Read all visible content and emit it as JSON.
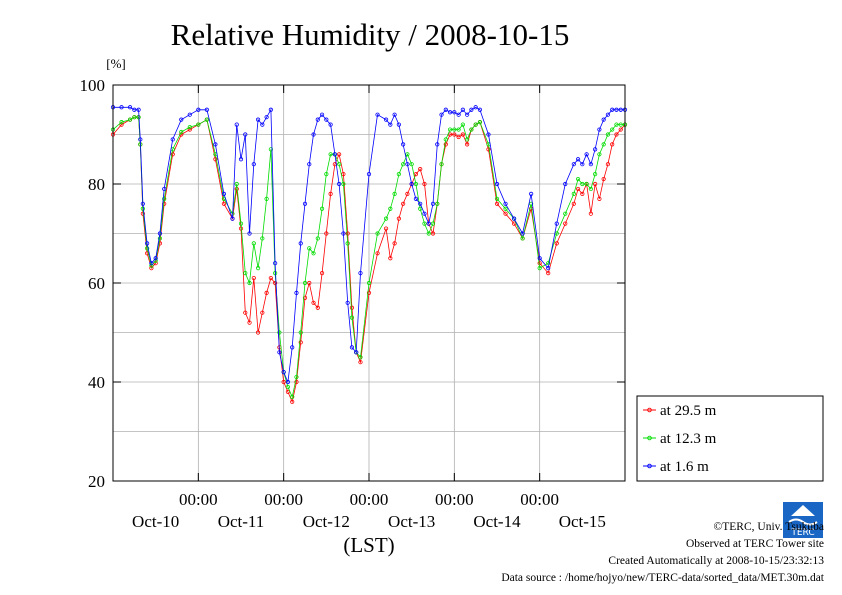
{
  "chart_data": {
    "type": "line",
    "title": "Relative Humidity / 2008-10-15",
    "ylabel": "[%]",
    "xlabel": "(LST)",
    "ylim": [
      20,
      100
    ],
    "yticks": [
      20,
      40,
      60,
      80,
      100
    ],
    "xlim": [
      0,
      6
    ],
    "x_unit": "days",
    "x_tick_time_label": "00:00",
    "x_day_labels": [
      "Oct-10",
      "Oct-11",
      "Oct-12",
      "Oct-13",
      "Oct-14",
      "Oct-15"
    ],
    "grid": true,
    "legend_position": "right-bottom",
    "series": [
      {
        "name": "at 29.5 m",
        "color": "#ff0000",
        "x": [
          0.0,
          0.1,
          0.2,
          0.25,
          0.3,
          0.32,
          0.35,
          0.4,
          0.45,
          0.5,
          0.55,
          0.6,
          0.7,
          0.8,
          0.9,
          1.0,
          1.1,
          1.2,
          1.3,
          1.4,
          1.45,
          1.5,
          1.55,
          1.6,
          1.65,
          1.7,
          1.75,
          1.8,
          1.85,
          1.9,
          1.95,
          2.0,
          2.05,
          2.1,
          2.15,
          2.2,
          2.25,
          2.3,
          2.35,
          2.4,
          2.45,
          2.5,
          2.55,
          2.6,
          2.65,
          2.7,
          2.75,
          2.8,
          2.85,
          2.9,
          3.0,
          3.1,
          3.2,
          3.25,
          3.3,
          3.35,
          3.4,
          3.45,
          3.5,
          3.55,
          3.6,
          3.65,
          3.7,
          3.75,
          3.8,
          3.85,
          3.9,
          3.95,
          4.0,
          4.05,
          4.1,
          4.15,
          4.2,
          4.25,
          4.3,
          4.4,
          4.5,
          4.6,
          4.7,
          4.8,
          4.9,
          5.0,
          5.1,
          5.2,
          5.3,
          5.4,
          5.45,
          5.5,
          5.55,
          5.6,
          5.65,
          5.7,
          5.75,
          5.8,
          5.85,
          5.9,
          5.95,
          6.0
        ],
        "values": [
          90,
          92,
          93,
          93.5,
          93.5,
          88,
          74,
          66,
          63,
          64,
          68,
          76,
          86,
          90,
          91,
          92,
          93,
          85,
          76,
          73,
          79,
          71,
          54,
          52,
          61,
          50,
          54,
          58,
          61,
          60,
          47,
          40,
          38,
          36,
          40,
          48,
          57,
          60,
          56,
          55,
          62,
          70,
          78,
          84,
          86,
          82,
          70,
          55,
          46,
          44,
          58,
          66,
          71,
          65,
          68,
          73,
          76,
          78,
          80,
          82,
          83,
          80,
          72,
          70,
          76,
          84,
          88,
          90,
          90,
          89.5,
          90,
          88,
          91,
          92,
          92.5,
          87,
          76,
          74,
          72,
          69,
          75,
          64,
          62,
          68,
          72,
          76,
          79,
          78,
          80,
          74,
          80,
          77,
          81,
          84,
          88,
          90,
          91,
          92
        ]
      },
      {
        "name": "at 12.3 m",
        "color": "#00dd00",
        "x": [
          0.0,
          0.1,
          0.2,
          0.25,
          0.3,
          0.32,
          0.35,
          0.4,
          0.45,
          0.5,
          0.55,
          0.6,
          0.7,
          0.8,
          0.9,
          1.0,
          1.1,
          1.2,
          1.3,
          1.4,
          1.45,
          1.5,
          1.55,
          1.6,
          1.65,
          1.7,
          1.75,
          1.8,
          1.85,
          1.9,
          1.95,
          2.0,
          2.05,
          2.1,
          2.15,
          2.2,
          2.25,
          2.3,
          2.35,
          2.4,
          2.45,
          2.5,
          2.55,
          2.6,
          2.65,
          2.7,
          2.75,
          2.8,
          2.85,
          2.9,
          3.0,
          3.1,
          3.2,
          3.25,
          3.3,
          3.35,
          3.4,
          3.45,
          3.5,
          3.55,
          3.6,
          3.65,
          3.7,
          3.75,
          3.8,
          3.85,
          3.9,
          3.95,
          4.0,
          4.05,
          4.1,
          4.15,
          4.2,
          4.25,
          4.3,
          4.4,
          4.5,
          4.6,
          4.7,
          4.8,
          4.9,
          5.0,
          5.1,
          5.2,
          5.3,
          5.4,
          5.45,
          5.5,
          5.55,
          5.6,
          5.65,
          5.7,
          5.75,
          5.8,
          5.85,
          5.9,
          5.95,
          6.0
        ],
        "values": [
          91,
          92.5,
          93,
          93.5,
          93.5,
          88,
          75,
          67,
          63.5,
          64.5,
          69,
          77,
          87,
          90.5,
          91.5,
          92,
          93,
          86,
          77,
          74,
          80,
          72,
          62,
          60,
          68,
          63,
          69,
          77,
          87,
          62,
          50,
          42,
          39,
          37,
          41,
          50,
          60,
          67,
          66,
          69,
          75,
          82,
          86,
          86,
          84,
          80,
          68,
          53,
          46,
          45,
          60,
          70,
          73,
          75,
          78,
          82,
          84,
          86,
          84,
          80,
          75,
          72,
          70,
          72,
          76,
          84,
          89,
          91,
          91,
          91,
          92,
          89,
          91,
          92,
          92.5,
          88,
          77,
          75,
          73,
          69,
          76,
          63,
          64,
          70,
          74,
          78,
          81,
          80,
          80,
          79,
          82,
          86,
          88,
          90,
          91,
          92,
          92,
          92
        ]
      },
      {
        "name": "at 1.6 m",
        "color": "#0000ff",
        "x": [
          0.0,
          0.1,
          0.2,
          0.25,
          0.3,
          0.32,
          0.35,
          0.4,
          0.45,
          0.5,
          0.55,
          0.6,
          0.7,
          0.8,
          0.9,
          1.0,
          1.1,
          1.2,
          1.3,
          1.4,
          1.45,
          1.5,
          1.55,
          1.6,
          1.65,
          1.7,
          1.75,
          1.8,
          1.85,
          1.9,
          1.95,
          2.0,
          2.05,
          2.1,
          2.15,
          2.2,
          2.25,
          2.3,
          2.35,
          2.4,
          2.45,
          2.5,
          2.55,
          2.6,
          2.65,
          2.7,
          2.75,
          2.8,
          2.85,
          2.9,
          3.0,
          3.1,
          3.2,
          3.25,
          3.3,
          3.35,
          3.4,
          3.45,
          3.5,
          3.55,
          3.6,
          3.65,
          3.7,
          3.75,
          3.8,
          3.85,
          3.9,
          3.95,
          4.0,
          4.05,
          4.1,
          4.15,
          4.2,
          4.25,
          4.3,
          4.4,
          4.5,
          4.6,
          4.7,
          4.8,
          4.9,
          5.0,
          5.1,
          5.2,
          5.3,
          5.4,
          5.45,
          5.5,
          5.55,
          5.6,
          5.65,
          5.7,
          5.75,
          5.8,
          5.85,
          5.9,
          5.95,
          6.0
        ],
        "values": [
          95.5,
          95.5,
          95.5,
          95,
          95,
          89,
          76,
          68,
          64,
          65,
          70,
          79,
          89,
          93,
          94,
          95,
          95,
          88,
          78,
          73,
          92,
          85,
          90,
          70,
          84,
          93,
          92,
          93.5,
          95,
          64,
          46,
          42,
          40,
          47,
          58,
          68,
          76,
          84,
          90,
          93,
          94,
          93,
          92,
          86,
          80,
          70,
          56,
          47,
          46,
          62,
          82,
          94,
          93,
          92,
          94,
          92,
          88,
          84,
          80,
          77,
          76,
          74,
          72,
          76,
          88,
          94,
          95,
          94.5,
          94.5,
          94,
          95,
          94,
          95,
          95.5,
          95,
          90,
          80,
          76,
          73,
          70,
          78,
          65,
          63,
          72,
          80,
          84,
          85,
          84,
          86,
          84,
          87,
          91,
          93,
          94,
          95,
          95,
          95,
          95
        ]
      }
    ]
  },
  "credits": {
    "line1": "©TERC, Univ. Tsukuba",
    "line2": "Observed at TERC Tower site",
    "line3": "Created Automatically at 2008-10-15/23:32:13",
    "line4": "Data source : /home/hojyo/new/TERC-data/sorted_data/MET.30m.dat"
  },
  "logo": {
    "text": "TERC"
  }
}
